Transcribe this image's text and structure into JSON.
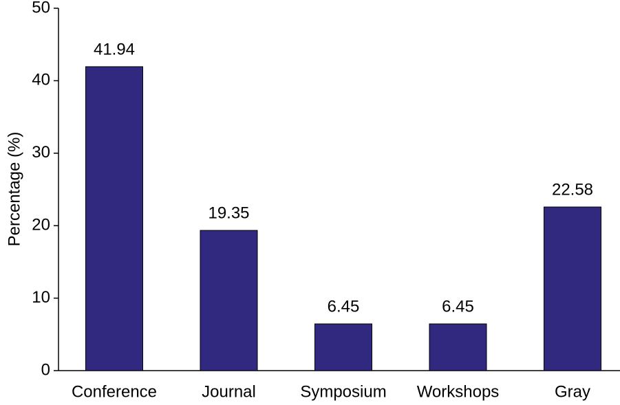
{
  "chart_data": {
    "type": "bar",
    "y_label": "Percentage (%)",
    "categories": [
      "Conference",
      "Journal",
      "Symposium",
      "Workshops",
      "Gray"
    ],
    "values": [
      41.94,
      19.35,
      6.45,
      6.45,
      22.58
    ],
    "color": "#31297f",
    "ylim": [
      0,
      50
    ],
    "yticks": [
      0,
      10,
      20,
      30,
      40,
      50
    ],
    "grid": false
  }
}
